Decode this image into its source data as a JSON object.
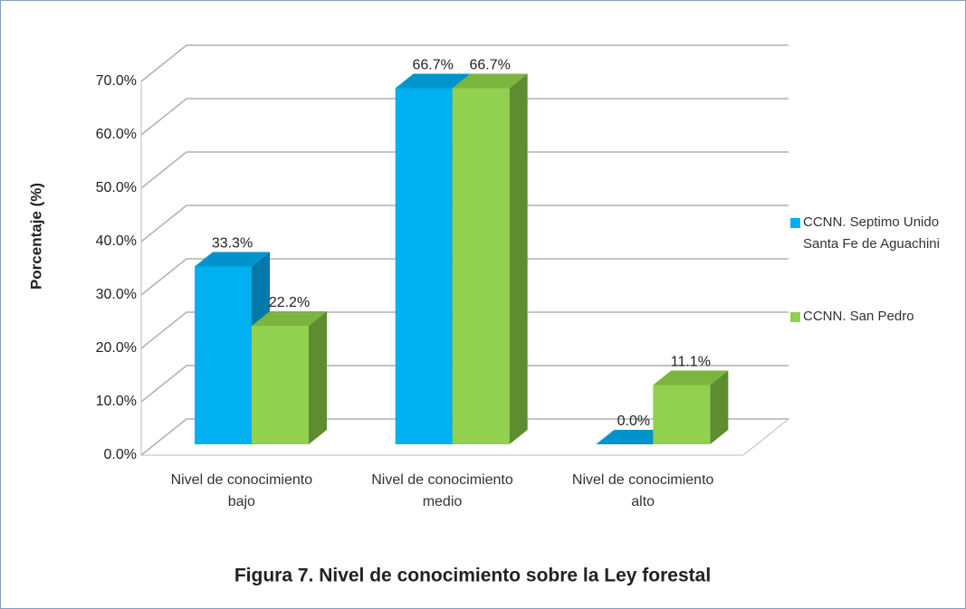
{
  "chart_data": {
    "type": "bar3d",
    "title": "Figura 7. Nivel de conocimiento sobre la Ley forestal",
    "y_label": "Porcentaje (%)",
    "categories": [
      "Nivel de conocimiento bajo",
      "Nivel de conocimiento medio",
      "Nivel de conocimiento alto"
    ],
    "series": [
      {
        "name": "CCNN. Septimo Unido Santa Fe de Aguachini",
        "color": "#00b0f0",
        "side": "#0079aa",
        "top": "#0093cc",
        "values": [
          33.3,
          66.7,
          0.0
        ],
        "value_labels": [
          "33.3%",
          "66.7%",
          "0.0%"
        ]
      },
      {
        "name": "CCNN. San Pedro",
        "color": "#92d050",
        "side": "#5e8c30",
        "top": "#7bb43f",
        "values": [
          22.2,
          66.7,
          11.1
        ],
        "value_labels": [
          "22.2%",
          "66.7%",
          "11.1%"
        ]
      }
    ],
    "ylim": [
      0,
      70
    ],
    "yticks": [
      {
        "value": 0,
        "label": "0.0%"
      },
      {
        "value": 10,
        "label": "10.0%"
      },
      {
        "value": 20,
        "label": "20.0%"
      },
      {
        "value": 30,
        "label": "30.0%"
      },
      {
        "value": 40,
        "label": "40.0%"
      },
      {
        "value": 50,
        "label": "50.0%"
      },
      {
        "value": 60,
        "label": "60.0%"
      },
      {
        "value": 70,
        "label": "70.0%"
      }
    ],
    "grid": true,
    "legend": "right"
  }
}
